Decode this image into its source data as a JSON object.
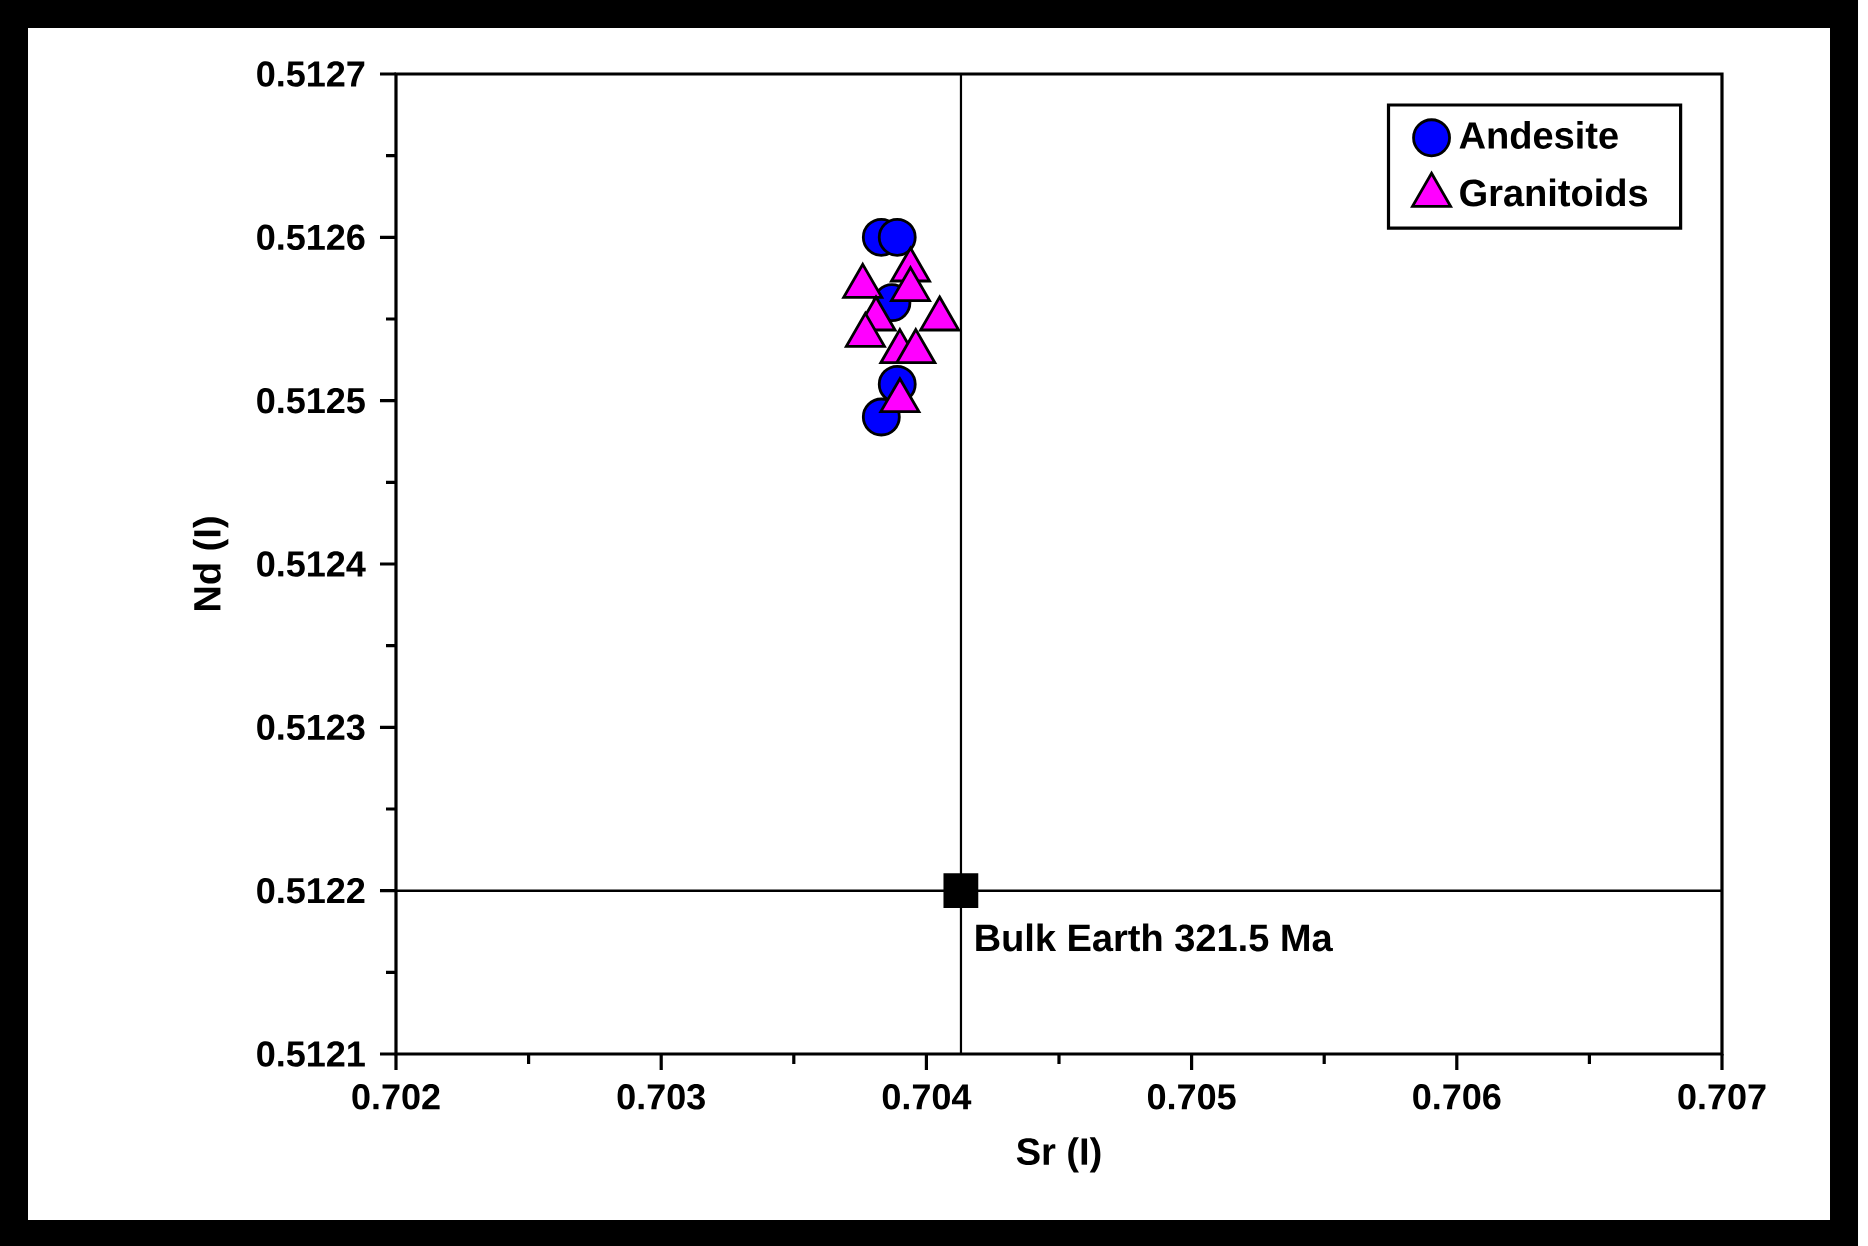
{
  "chart_data": {
    "type": "scatter",
    "xlabel": "Sr (I)",
    "ylabel": "Nd (I)",
    "xlim": [
      0.702,
      0.707
    ],
    "ylim": [
      0.5121,
      0.5127
    ],
    "xticks": [
      0.702,
      0.703,
      0.704,
      0.705,
      0.706,
      0.707
    ],
    "yticks": [
      0.5121,
      0.5122,
      0.5123,
      0.5124,
      0.5125,
      0.5126,
      0.5127
    ],
    "grid": false,
    "legend": "top right",
    "series": [
      {
        "name": "Andesite",
        "color": "#0000ff",
        "marker": "circle",
        "x": [
          0.70383,
          0.70389,
          null,
          0.70387,
          null,
          null,
          0.70389,
          0.70383
        ],
        "values": [
          0.5126,
          0.5126,
          null,
          0.51256,
          null,
          null,
          0.51251,
          0.51249
        ]
      },
      {
        "name": "Granitoids",
        "color": "#ff00ff",
        "marker": "triangle",
        "x": [
          0.70376,
          0.70394,
          0.70394,
          0.70381,
          0.70405,
          0.70377,
          0.7039,
          0.70396,
          0.7039
        ],
        "values": [
          0.51257,
          0.51258,
          0.512568,
          0.51255,
          0.51255,
          0.51254,
          0.51253,
          0.51253,
          0.5125
        ]
      },
      {
        "color": "#000000",
        "marker": "square",
        "x": [
          0.70413
        ],
        "values": [
          0.5122
        ]
      }
    ],
    "ref_lines": [
      {
        "axis": "x",
        "value": 0.70413,
        "color": "#000000"
      },
      {
        "axis": "y",
        "value": 0.5122,
        "color": "#000000"
      }
    ],
    "annotations": [
      {
        "text": "Bulk Earth 321.5 Ma",
        "x": 0.70413,
        "y": 0.5122
      }
    ]
  }
}
